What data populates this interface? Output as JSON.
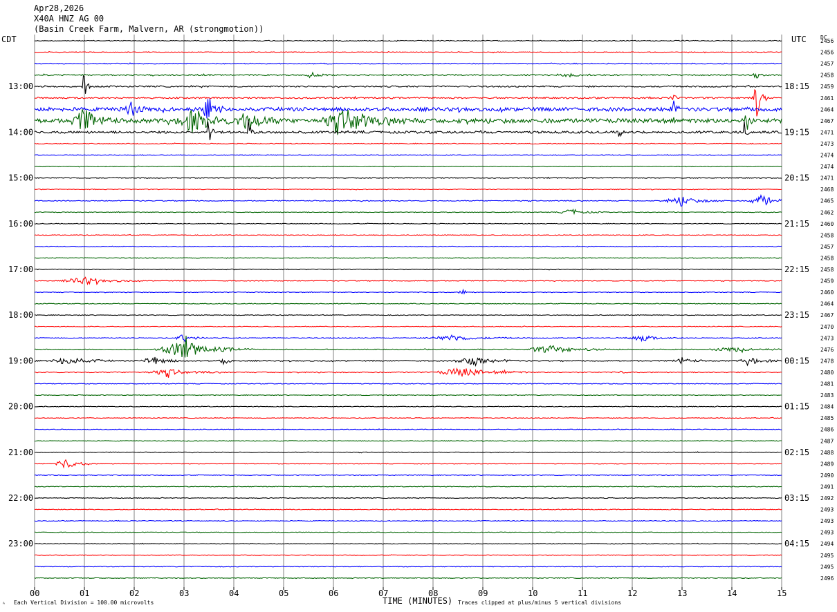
{
  "header": {
    "date": "Apr28,2026",
    "station": "X40A HNZ AG 00",
    "location": "(Basin Creek Farm, Malvern, AR (strongmotion))"
  },
  "labels": {
    "left_tz": "CDT",
    "right_tz": "UTC",
    "dc_header": "DC"
  },
  "footer": {
    "scale": "Each Vertical Division =  100.00 microvolts",
    "clip": "Traces clipped at plus/minus 5 vertical divisions",
    "logo_mark": "ᴬ"
  },
  "colors": {
    "trace_cycle": [
      "#000000",
      "#ff0000",
      "#0000ff",
      "#006400"
    ],
    "grid": "#808080"
  },
  "chart_data": {
    "type": "helicorder",
    "xlabel": "TIME (MINUTES)",
    "xlim": [
      0,
      15
    ],
    "x_ticks": [
      "00",
      "01",
      "02",
      "03",
      "04",
      "05",
      "06",
      "07",
      "08",
      "09",
      "10",
      "11",
      "12",
      "13",
      "14",
      "15"
    ],
    "minutes_per_trace": 15,
    "left_time_labels": [
      {
        "trace": 4,
        "text": "13:00"
      },
      {
        "trace": 8,
        "text": "14:00"
      },
      {
        "trace": 12,
        "text": "15:00"
      },
      {
        "trace": 16,
        "text": "16:00"
      },
      {
        "trace": 20,
        "text": "17:00"
      },
      {
        "trace": 24,
        "text": "18:00"
      },
      {
        "trace": 28,
        "text": "19:00"
      },
      {
        "trace": 32,
        "text": "20:00"
      },
      {
        "trace": 36,
        "text": "21:00"
      },
      {
        "trace": 40,
        "text": "22:00"
      },
      {
        "trace": 44,
        "text": "23:00"
      }
    ],
    "right_time_labels": [
      {
        "trace": 4,
        "text": "18:15"
      },
      {
        "trace": 8,
        "text": "19:15"
      },
      {
        "trace": 12,
        "text": "20:15"
      },
      {
        "trace": 16,
        "text": "21:15"
      },
      {
        "trace": 20,
        "text": "22:15"
      },
      {
        "trace": 24,
        "text": "23:15"
      },
      {
        "trace": 28,
        "text": "00:15"
      },
      {
        "trace": 32,
        "text": "01:15"
      },
      {
        "trace": 36,
        "text": "02:15"
      },
      {
        "trace": 40,
        "text": "03:15"
      },
      {
        "trace": 44,
        "text": "04:15"
      }
    ],
    "dc_offsets": [
      "2456",
      "2456",
      "2457",
      "2458",
      "2459",
      "2461",
      "2464",
      "2467",
      "2471",
      "2473",
      "2474",
      "2474",
      "2471",
      "2468",
      "2465",
      "2462",
      "2460",
      "2458",
      "2457",
      "2458",
      "2458",
      "2459",
      "2460",
      "2464",
      "2467",
      "2470",
      "2473",
      "2476",
      "2478",
      "2480",
      "2481",
      "2483",
      "2484",
      "2485",
      "2486",
      "2487",
      "2488",
      "2489",
      "2490",
      "2491",
      "2492",
      "2493",
      "2493",
      "2493",
      "2494",
      "2495",
      "2495",
      "2496"
    ],
    "noise_level": [
      0.6,
      0.6,
      0.7,
      0.9,
      1.0,
      1.1,
      2.6,
      3.0,
      1.6,
      0.6,
      0.5,
      0.5,
      0.6,
      0.5,
      0.6,
      0.5,
      0.5,
      0.5,
      0.5,
      0.5,
      0.5,
      0.5,
      0.5,
      0.5,
      0.5,
      0.5,
      0.6,
      0.6,
      0.8,
      0.7,
      0.5,
      0.5,
      0.5,
      0.5,
      0.5,
      0.5,
      0.5,
      0.5,
      0.5,
      0.5,
      0.5,
      0.5,
      0.5,
      0.5,
      0.5,
      0.5,
      0.5,
      0.5
    ],
    "events": [
      {
        "trace": 3,
        "minute": 5.55,
        "amp": 4,
        "dur": 0.15
      },
      {
        "trace": 3,
        "minute": 10.7,
        "amp": 4,
        "dur": 0.15
      },
      {
        "trace": 3,
        "minute": 14.5,
        "amp": 5,
        "dur": 0.1
      },
      {
        "trace": 4,
        "minute": 1.0,
        "amp": 30,
        "dur": 0.05
      },
      {
        "trace": 5,
        "minute": 14.5,
        "amp": 26,
        "dur": 0.1
      },
      {
        "trace": 5,
        "minute": 12.8,
        "amp": 10,
        "dur": 0.05
      },
      {
        "trace": 6,
        "minute": 1.9,
        "amp": 12,
        "dur": 0.2
      },
      {
        "trace": 6,
        "minute": 3.5,
        "amp": 16,
        "dur": 0.15
      },
      {
        "trace": 6,
        "minute": 12.8,
        "amp": 18,
        "dur": 0.08
      },
      {
        "trace": 7,
        "minute": 1.0,
        "amp": 16,
        "dur": 0.3
      },
      {
        "trace": 7,
        "minute": 3.2,
        "amp": 16,
        "dur": 0.4
      },
      {
        "trace": 7,
        "minute": 4.3,
        "amp": 14,
        "dur": 0.3
      },
      {
        "trace": 7,
        "minute": 6.3,
        "amp": 14,
        "dur": 0.6
      },
      {
        "trace": 7,
        "minute": 14.3,
        "amp": 14,
        "dur": 0.05
      },
      {
        "trace": 8,
        "minute": 3.5,
        "amp": 30,
        "dur": 0.05
      },
      {
        "trace": 8,
        "minute": 4.3,
        "amp": 20,
        "dur": 0.05
      },
      {
        "trace": 8,
        "minute": 14.25,
        "amp": 14,
        "dur": 0.05
      },
      {
        "trace": 8,
        "minute": 11.75,
        "amp": 10,
        "dur": 0.05
      },
      {
        "trace": 14,
        "minute": 13.0,
        "amp": 6,
        "dur": 0.4
      },
      {
        "trace": 14,
        "minute": 14.6,
        "amp": 8,
        "dur": 0.3
      },
      {
        "trace": 15,
        "minute": 10.8,
        "amp": 4,
        "dur": 0.3
      },
      {
        "trace": 21,
        "minute": 1.0,
        "amp": 5,
        "dur": 0.5
      },
      {
        "trace": 22,
        "minute": 8.6,
        "amp": 4,
        "dur": 0.1
      },
      {
        "trace": 26,
        "minute": 3.0,
        "amp": 6,
        "dur": 0.2
      },
      {
        "trace": 26,
        "minute": 8.4,
        "amp": 4,
        "dur": 0.6
      },
      {
        "trace": 26,
        "minute": 12.2,
        "amp": 4,
        "dur": 0.4
      },
      {
        "trace": 27,
        "minute": 3.0,
        "amp": 12,
        "dur": 0.6
      },
      {
        "trace": 27,
        "minute": 10.4,
        "amp": 5,
        "dur": 0.6
      },
      {
        "trace": 27,
        "minute": 14.0,
        "amp": 3,
        "dur": 0.5
      },
      {
        "trace": 28,
        "minute": 0.7,
        "amp": 6,
        "dur": 0.4
      },
      {
        "trace": 28,
        "minute": 2.4,
        "amp": 6,
        "dur": 0.3
      },
      {
        "trace": 28,
        "minute": 3.8,
        "amp": 6,
        "dur": 0.1
      },
      {
        "trace": 28,
        "minute": 8.8,
        "amp": 7,
        "dur": 0.4
      },
      {
        "trace": 28,
        "minute": 13.0,
        "amp": 5,
        "dur": 0.2
      },
      {
        "trace": 28,
        "minute": 14.4,
        "amp": 4,
        "dur": 0.3
      },
      {
        "trace": 29,
        "minute": 2.7,
        "amp": 4,
        "dur": 0.5
      },
      {
        "trace": 29,
        "minute": 8.6,
        "amp": 6,
        "dur": 0.6
      },
      {
        "trace": 29,
        "minute": 11.8,
        "amp": 4,
        "dur": 0.05
      },
      {
        "trace": 37,
        "minute": 0.65,
        "amp": 8,
        "dur": 0.25
      }
    ]
  }
}
